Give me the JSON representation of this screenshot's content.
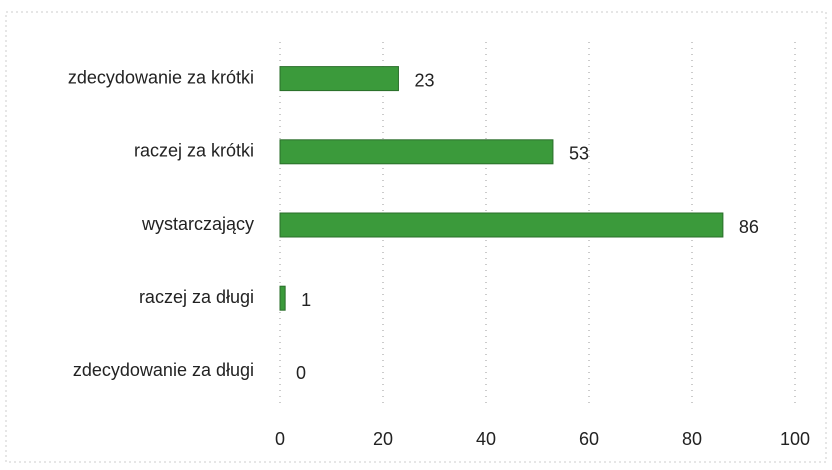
{
  "chart_data": {
    "type": "bar",
    "orientation": "horizontal",
    "categories": [
      "zdecydowanie za krótki",
      "raczej za krótki",
      "wystarczający",
      "raczej za długi",
      "zdecydowanie za długi"
    ],
    "values": [
      23,
      53,
      86,
      1,
      0
    ],
    "color": "#3b9a3b",
    "xlim": [
      0,
      100
    ],
    "xticks": [
      0,
      20,
      40,
      60,
      80,
      100
    ],
    "grid": true
  }
}
